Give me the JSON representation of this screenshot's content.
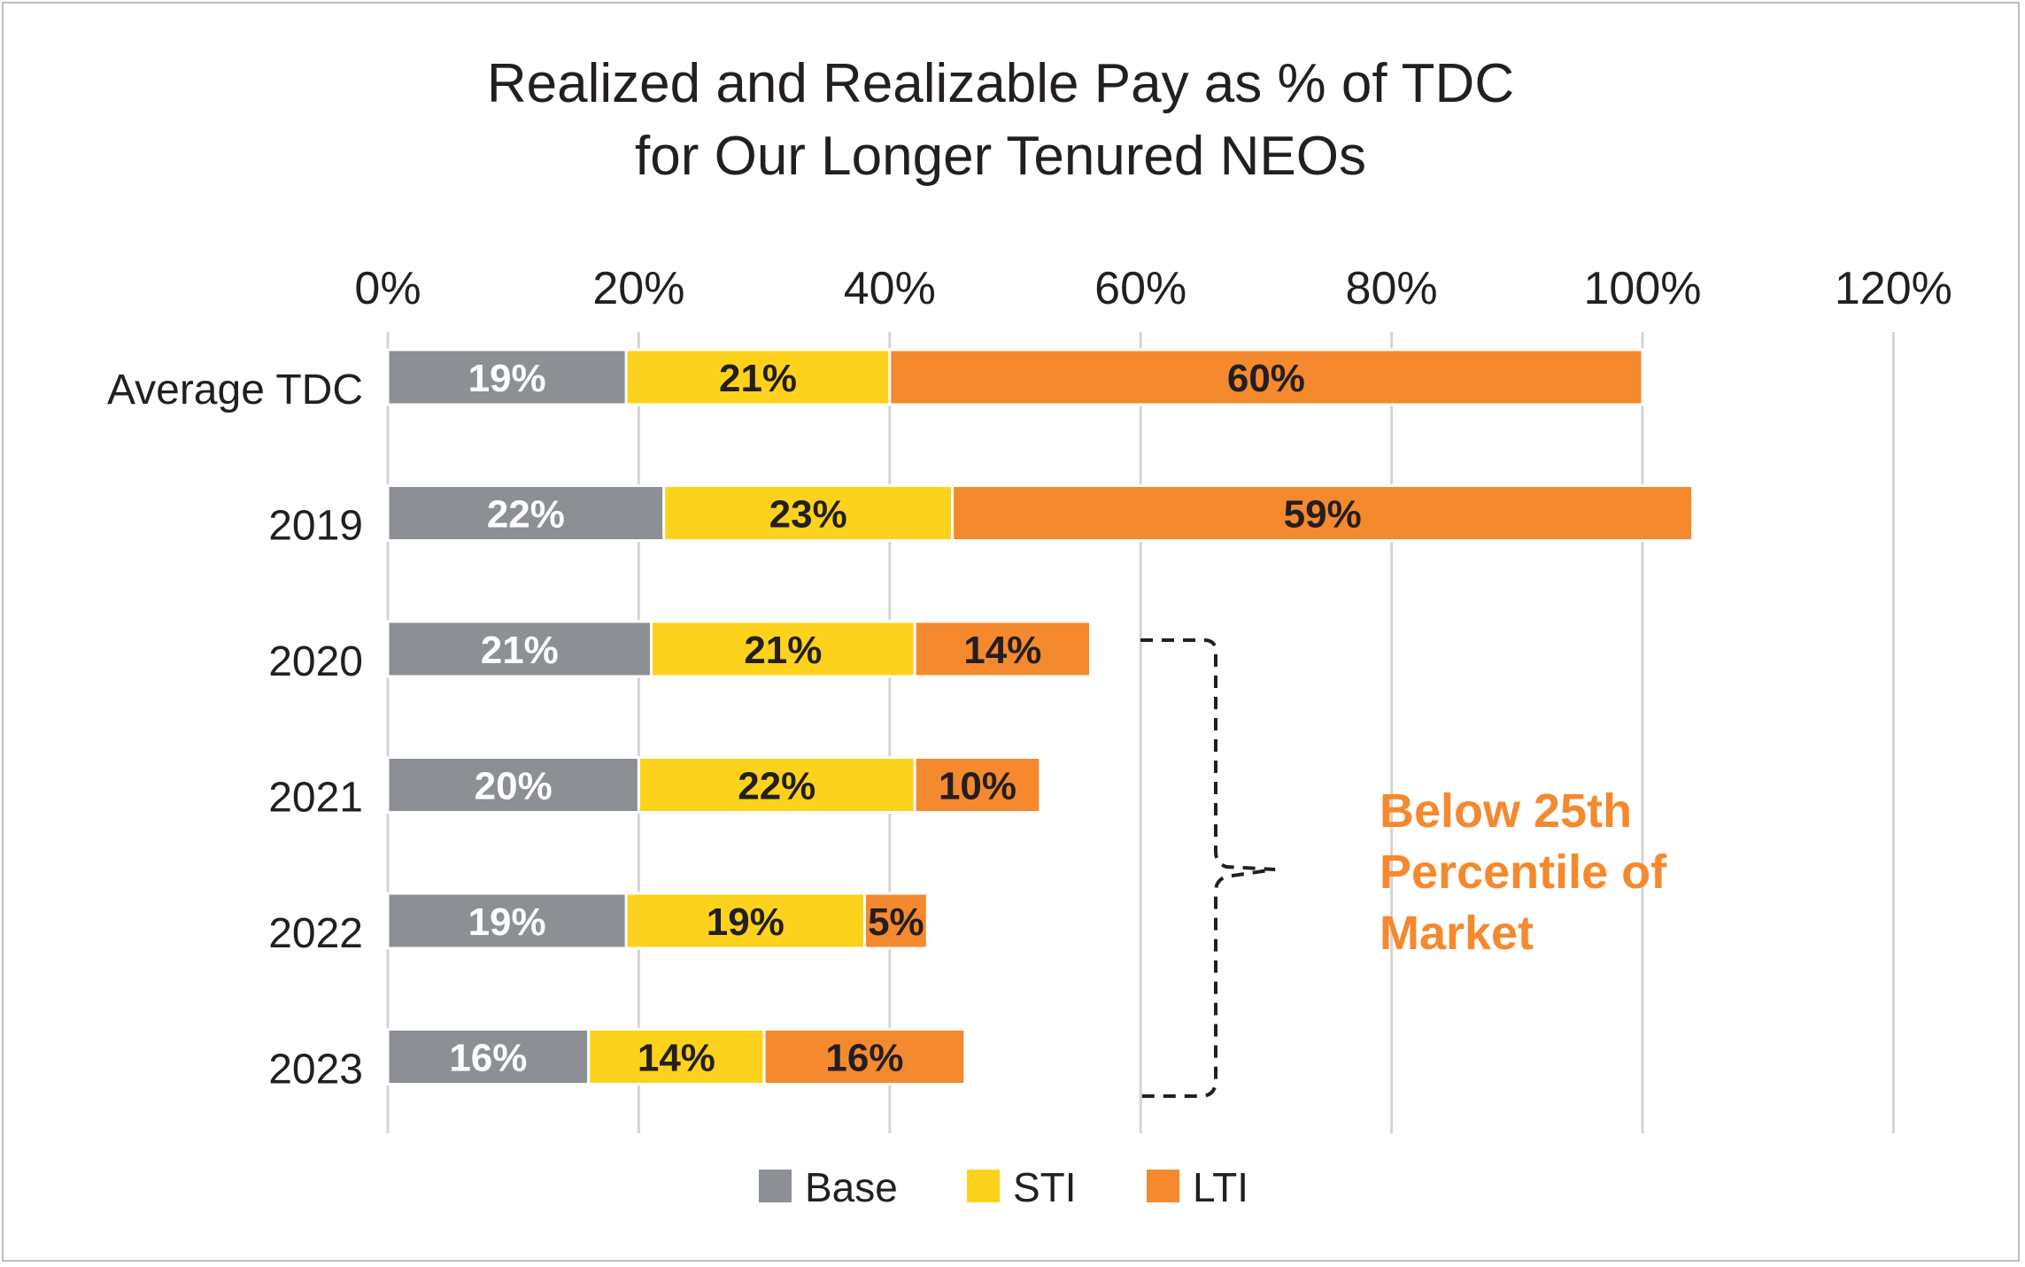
{
  "chart_data": {
    "type": "bar",
    "orientation": "horizontal",
    "stacked": true,
    "title": [
      "Realized and Realizable Pay as % of TDC",
      "for Our Longer Tenured NEOs"
    ],
    "xlabel": "",
    "ylabel": "",
    "xlim": [
      0,
      120
    ],
    "x_ticks": [
      0,
      20,
      40,
      60,
      80,
      100,
      120
    ],
    "x_tick_labels": [
      "0%",
      "20%",
      "40%",
      "60%",
      "80%",
      "100%",
      "120%"
    ],
    "grid": true,
    "legend_position": "bottom",
    "categories": [
      "Average TDC",
      "2019",
      "2020",
      "2021",
      "2022",
      "2023"
    ],
    "series": [
      {
        "name": "Base",
        "color": "#8c8f94",
        "label_color": "#ffffff",
        "values": [
          19,
          22,
          21,
          20,
          19,
          16
        ],
        "labels": [
          "19%",
          "22%",
          "21%",
          "20%",
          "19%",
          "16%"
        ]
      },
      {
        "name": "STI",
        "color": "#fcd21c",
        "label_color": "#231f20",
        "values": [
          21,
          23,
          21,
          22,
          19,
          14
        ],
        "labels": [
          "21%",
          "23%",
          "21%",
          "22%",
          "19%",
          "14%"
        ]
      },
      {
        "name": "LTI",
        "color": "#f5892e",
        "label_color": "#231f20",
        "values": [
          60,
          59,
          14,
          10,
          5,
          16
        ],
        "labels": [
          "60%",
          "59%",
          "14%",
          "10%",
          "5%",
          "16%"
        ]
      }
    ],
    "annotation": {
      "lines": [
        "Below 25th",
        "Percentile of",
        "Market"
      ],
      "color": "#f5892e",
      "applies_to": [
        "2020",
        "2021",
        "2022",
        "2023"
      ]
    }
  }
}
